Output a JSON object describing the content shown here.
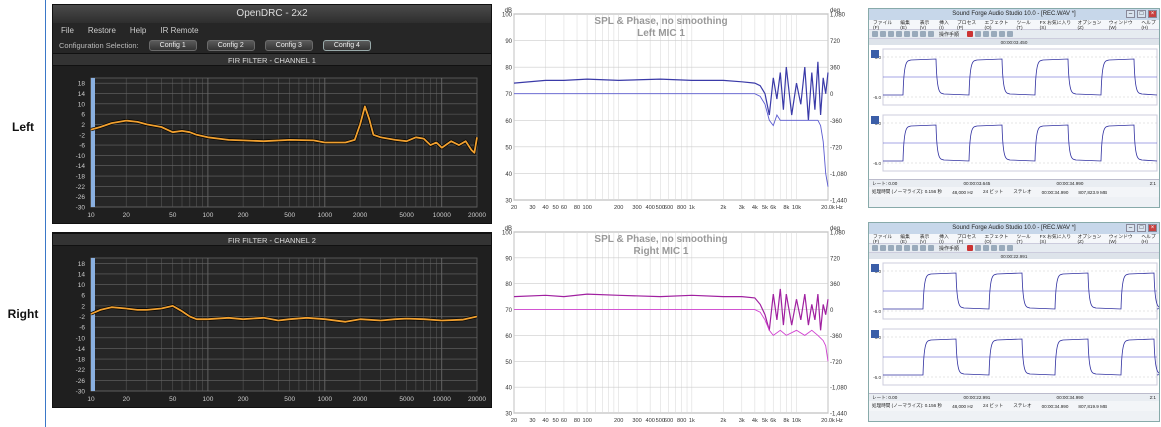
{
  "row_labels": [
    "Left",
    "Right"
  ],
  "opendrc": {
    "window_title": "OpenDRC - 2x2",
    "menu": [
      "File",
      "Restore",
      "Help",
      "IR Remote"
    ],
    "config_label": "Configuration Selection:",
    "configs": [
      "Config 1",
      "Config 2",
      "Config 3",
      "Config 4"
    ],
    "channel_titles": [
      "FIR FILTER - CHANNEL 1",
      "FIR FILTER - CHANNEL 2"
    ]
  },
  "rew": {
    "titles": [
      [
        "SPL & Phase, no smoothing",
        "Left MIC 1"
      ],
      [
        "SPL & Phase, no smoothing",
        "Right MIC 1"
      ]
    ],
    "ylabel": "dB",
    "y2label": "deg",
    "xunit": "Hz"
  },
  "soundforge": {
    "window_title": "Sound Forge Audio Studio 10.0 - [REC.WAV *]",
    "menu": [
      "ファイル(F)",
      "編集(E)",
      "表示(V)",
      "挿入(I)",
      "プロセス(P)",
      "エフェクト(O)",
      "ツール(T)",
      "FX お気に入り(S)",
      "オプション(Z)",
      "ウィンドウ(W)",
      "ヘルプ(H)"
    ],
    "tool_label": "操作手順",
    "timecodes": [
      "00:00:03.450",
      "00:00:22.991"
    ],
    "selections": [
      "00:00:03.645",
      "00:00:22.991"
    ],
    "end_time": "00:00:34.990",
    "level_labels": [
      "-6.0",
      "-6.0",
      "-6.0",
      "-6.0"
    ],
    "rate": "レート: 0.00",
    "ratio": "2:1",
    "status_left": "処理時間 (ノーマライズ): 0.156 秒",
    "status_right": [
      "48,000 Hz",
      "24 ビット",
      "ステレオ",
      "00:00:34.990",
      "807,823.9 MB"
    ],
    "status_right2": [
      "48,000 Hz",
      "24 ビット",
      "ステレオ",
      "00:00:34.990",
      "807,819.9 MB"
    ]
  },
  "chart_data": [
    {
      "type": "line",
      "title": "FIR FILTER - CHANNEL 1",
      "x_scale": "log",
      "xlim": [
        10,
        20000
      ],
      "ylim": [
        -30,
        20
      ],
      "x_ticks": [
        "10",
        "20",
        "50",
        "100",
        "200",
        "500",
        "1000",
        "2000",
        "5000",
        "10000",
        "20000"
      ],
      "y_ticks": [
        "18",
        "14",
        "10",
        "6",
        "2",
        "-2",
        "-6",
        "-10",
        "-14",
        "-18",
        "-22",
        "-26",
        "-30"
      ],
      "grid": true,
      "line_color": "#f0a030",
      "x": [
        10,
        12,
        15,
        20,
        25,
        30,
        40,
        50,
        60,
        70,
        80,
        100,
        150,
        200,
        300,
        500,
        800,
        1000,
        1500,
        1800,
        2000,
        2200,
        2400,
        2600,
        3000,
        4000,
        5000,
        6000,
        7000,
        8000,
        9000,
        10000,
        12000,
        14000,
        16000,
        18000,
        19000,
        20000
      ],
      "y": [
        0,
        1,
        2.5,
        3.5,
        3,
        2,
        1,
        -1,
        -0.5,
        -1,
        -2,
        -3,
        -4,
        -4.2,
        -4.5,
        -4,
        -4.2,
        -5,
        -5,
        -4,
        2,
        9,
        4,
        -2,
        -3,
        -4,
        -4.5,
        -3,
        -3.5,
        -6,
        -5,
        -7,
        -4.5,
        -6,
        -4.5,
        -8,
        -9,
        -3
      ]
    },
    {
      "type": "line",
      "title": "FIR FILTER - CHANNEL 2",
      "x_scale": "log",
      "xlim": [
        10,
        20000
      ],
      "ylim": [
        -30,
        20
      ],
      "x_ticks": [
        "10",
        "20",
        "50",
        "100",
        "200",
        "500",
        "1000",
        "2000",
        "5000",
        "10000",
        "20000"
      ],
      "y_ticks": [
        "18",
        "14",
        "10",
        "6",
        "2",
        "-2",
        "-6",
        "-10",
        "-14",
        "-18",
        "-22",
        "-26",
        "-30"
      ],
      "grid": true,
      "line_color": "#f0a030",
      "x": [
        10,
        12,
        15,
        20,
        25,
        30,
        40,
        50,
        60,
        70,
        80,
        100,
        150,
        200,
        300,
        400,
        500,
        700,
        1000,
        1500,
        2000,
        3000,
        4000,
        5000,
        7000,
        10000,
        15000,
        20000
      ],
      "y": [
        -1,
        0.5,
        1.5,
        1,
        0.5,
        0.5,
        1,
        2,
        0,
        -2,
        -3,
        -3,
        -2.5,
        -3,
        -2.5,
        -3.5,
        -3,
        -2.5,
        -3,
        -4,
        -3,
        -3.5,
        -3,
        -2.8,
        -3,
        -3.5,
        -3.2,
        -2
      ]
    },
    {
      "type": "line",
      "title": "SPL & Phase, no smoothing",
      "subtitle": "Left MIC 1",
      "x_scale": "log",
      "xlim": [
        20,
        20000
      ],
      "ylim": [
        30,
        100
      ],
      "y2lim": [
        -1440,
        1080
      ],
      "x_ticks": [
        "20",
        "30",
        "40",
        "50",
        "60",
        "80",
        "100",
        "200",
        "300",
        "400",
        "500",
        "600",
        "800",
        "1k",
        "2k",
        "3k",
        "4k",
        "5k",
        "6k",
        "8k",
        "10k",
        "20.0k"
      ],
      "y_ticks": [
        "100",
        "90",
        "80",
        "70",
        "60",
        "50",
        "40",
        "30"
      ],
      "y2_ticks": [
        "1,080",
        "720",
        "360",
        "0",
        "-360",
        "-720",
        "-1,080",
        "-1,440"
      ],
      "series": [
        {
          "color": "#3a3aa8",
          "x": [
            20,
            40,
            60,
            100,
            200,
            500,
            1000,
            2000,
            3000,
            4000,
            4500,
            5000,
            5500,
            6000,
            6500,
            7000,
            7500,
            8000,
            9000,
            10000,
            11000,
            12000,
            13000,
            14000,
            15000,
            16000,
            17000,
            18000,
            19000,
            20000
          ],
          "y": [
            74,
            75,
            75,
            75.5,
            75,
            75.5,
            75,
            75,
            74.5,
            74,
            73,
            70,
            62,
            76,
            68,
            78,
            64,
            80,
            62,
            74,
            66,
            80,
            60,
            78,
            64,
            82,
            62,
            76,
            70,
            78
          ]
        },
        {
          "color": "#5a5ad0",
          "x": [
            20,
            100,
            1000,
            3000,
            4000,
            4500,
            5000,
            5500,
            6000,
            6500,
            7000,
            8000,
            10000,
            12000,
            14000,
            16000,
            17000,
            18000,
            19000,
            20000
          ],
          "y": [
            70,
            70,
            70,
            70,
            70,
            69,
            66,
            60,
            58,
            62,
            60,
            60,
            60,
            60,
            60,
            60,
            58,
            52,
            40,
            35
          ]
        }
      ]
    },
    {
      "type": "line",
      "title": "SPL & Phase, no smoothing",
      "subtitle": "Right MIC 1",
      "x_scale": "log",
      "xlim": [
        20,
        20000
      ],
      "ylim": [
        30,
        100
      ],
      "y2lim": [
        -1440,
        1080
      ],
      "x_ticks": [
        "20",
        "30",
        "40",
        "50",
        "60",
        "80",
        "100",
        "200",
        "300",
        "400",
        "500",
        "600",
        "800",
        "1k",
        "2k",
        "3k",
        "4k",
        "5k",
        "6k",
        "8k",
        "10k",
        "20.0k"
      ],
      "y_ticks": [
        "100",
        "90",
        "80",
        "70",
        "60",
        "50",
        "40",
        "30"
      ],
      "y2_ticks": [
        "1,080",
        "720",
        "360",
        "0",
        "-360",
        "-720",
        "-1,080",
        "-1,440"
      ],
      "series": [
        {
          "color": "#a020a0",
          "x": [
            20,
            40,
            60,
            100,
            200,
            500,
            1000,
            2000,
            3000,
            4000,
            4500,
            5000,
            5500,
            6000,
            6500,
            7000,
            7500,
            8000,
            9000,
            10000,
            11000,
            12000,
            13000,
            14000,
            15000,
            16000,
            17000,
            18000,
            19000,
            20000
          ],
          "y": [
            75,
            75.5,
            75,
            76,
            75.5,
            75,
            75.5,
            75,
            75,
            74.5,
            72,
            68,
            62,
            76,
            66,
            78,
            64,
            76,
            64,
            74,
            66,
            76,
            64,
            72,
            66,
            76,
            62,
            72,
            68,
            74
          ]
        },
        {
          "color": "#d040d0",
          "x": [
            20,
            100,
            1000,
            3000,
            4000,
            4500,
            5000,
            5500,
            6000,
            7000,
            8000,
            10000,
            12000,
            14000,
            16000,
            18000,
            19000,
            20000
          ],
          "y": [
            70,
            70,
            70,
            70,
            70,
            69,
            66,
            62,
            60,
            62,
            60,
            62,
            60,
            62,
            60,
            58,
            56,
            50
          ]
        }
      ]
    }
  ]
}
